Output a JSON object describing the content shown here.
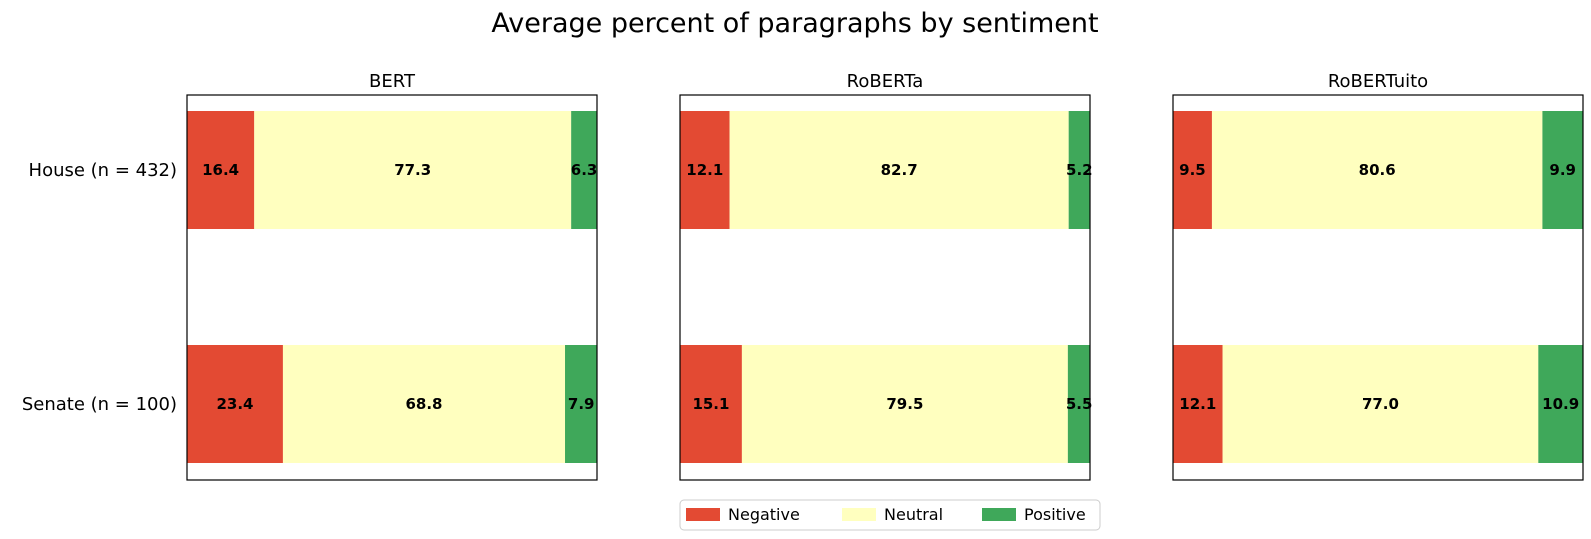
{
  "chart_data": {
    "type": "bar",
    "orientation": "horizontal-stacked",
    "title": "Average percent of paragraphs by sentiment",
    "categories": [
      "House (n = 432)",
      "Senate (n = 100)"
    ],
    "xlim": [
      0,
      100
    ],
    "grid": false,
    "legend_position": "bottom-center",
    "legend": [
      "Negative",
      "Neutral",
      "Positive"
    ],
    "colors": {
      "Negative": "#e34a33",
      "Neutral": "#ffffbf",
      "Positive": "#3fa85a"
    },
    "panels": [
      {
        "title": "BERT",
        "series": [
          {
            "name": "Negative",
            "values": [
              16.4,
              23.4
            ]
          },
          {
            "name": "Neutral",
            "values": [
              77.3,
              68.8
            ]
          },
          {
            "name": "Positive",
            "values": [
              6.3,
              7.9
            ]
          }
        ]
      },
      {
        "title": "RoBERTa",
        "series": [
          {
            "name": "Negative",
            "values": [
              12.1,
              15.1
            ]
          },
          {
            "name": "Neutral",
            "values": [
              82.7,
              79.5
            ]
          },
          {
            "name": "Positive",
            "values": [
              5.2,
              5.5
            ]
          }
        ]
      },
      {
        "title": "RoBERTuito",
        "series": [
          {
            "name": "Negative",
            "values": [
              9.5,
              12.1
            ]
          },
          {
            "name": "Neutral",
            "values": [
              80.6,
              77.0
            ]
          },
          {
            "name": "Positive",
            "values": [
              9.9,
              10.9
            ]
          }
        ]
      }
    ]
  }
}
